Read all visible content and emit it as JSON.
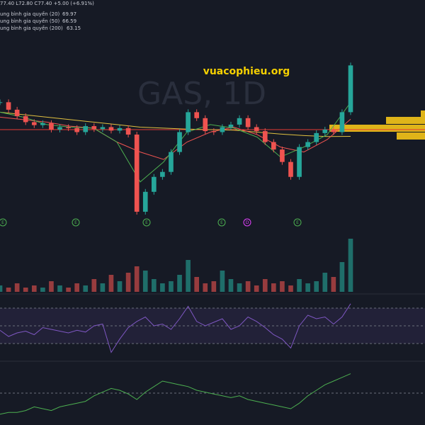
{
  "chart_data": {
    "type": "candlestick",
    "watermark": "GAS, 1D",
    "site": "vuacophieu.org",
    "ohlc_text": "77.40 L72.80 C77.40 +5.00 (+6.91%)",
    "legend": [
      {
        "name": "ung bình gia quyền (20)",
        "value": "69.97",
        "color": "#4caf50"
      },
      {
        "name": "ung bình gia quyền (50)",
        "value": "66.59",
        "color": "#ef5350"
      },
      {
        "name": "ung bình gia quyền (200)",
        "value": "63.15",
        "color": "#e0c040"
      }
    ],
    "events": [
      "E",
      "E",
      "E",
      "E",
      "D",
      "E"
    ],
    "ylim": [
      45,
      82
    ],
    "close": [
      70,
      68.5,
      67.2,
      66,
      65.4,
      65.8,
      64.5,
      65,
      64.8,
      64,
      65.2,
      64.6,
      65,
      64.3,
      64.8,
      63.5,
      48,
      52,
      55,
      56,
      60,
      64,
      68,
      66.8,
      64.2,
      64,
      65,
      65.5,
      66.8,
      65,
      64.2,
      62,
      60.5,
      58,
      55,
      61,
      62,
      63.8,
      64.5,
      64,
      68,
      77.4
    ],
    "ma20": [
      68,
      67,
      65.5,
      65,
      64.8,
      62,
      54,
      58,
      64,
      65.5,
      64.8,
      63,
      59,
      61,
      63.5,
      69.97
    ],
    "ma50": [
      67,
      66.5,
      66,
      65.2,
      64.8,
      62,
      60,
      58.5,
      62,
      64,
      65,
      63.5,
      61,
      60,
      62.5,
      66.59
    ],
    "ma200": [
      68,
      67.5,
      67,
      66.5,
      66,
      65.5,
      65,
      64.8,
      64.6,
      64.5,
      64.4,
      64,
      63.6,
      63.3,
      63.1,
      63.15
    ],
    "volume": [
      3,
      2,
      4,
      2,
      3,
      2,
      5,
      3,
      2,
      4,
      3,
      6,
      4,
      8,
      5,
      9,
      12,
      10,
      6,
      4,
      5,
      8,
      15,
      7,
      4,
      5,
      10,
      6,
      4,
      5,
      3,
      6,
      4,
      5,
      3,
      6,
      4,
      5,
      9,
      7,
      14,
      25
    ],
    "rsi": [
      45,
      38,
      42,
      44,
      40,
      48,
      46,
      44,
      42,
      45,
      43,
      50,
      52,
      20,
      35,
      48,
      55,
      60,
      50,
      52,
      46,
      58,
      72,
      55,
      50,
      54,
      58,
      46,
      50,
      60,
      55,
      48,
      40,
      35,
      25,
      50,
      62,
      58,
      60,
      52,
      60,
      75
    ],
    "momentum": [
      2,
      3,
      3,
      4,
      6,
      5,
      4,
      6,
      7,
      8,
      9,
      12,
      14,
      16,
      15,
      13,
      10,
      14,
      17,
      20,
      19,
      18,
      17,
      15,
      14,
      13,
      12,
      11,
      12,
      10,
      9,
      8,
      7,
      6,
      5,
      8,
      12,
      15,
      18,
      20,
      22,
      24
    ]
  }
}
